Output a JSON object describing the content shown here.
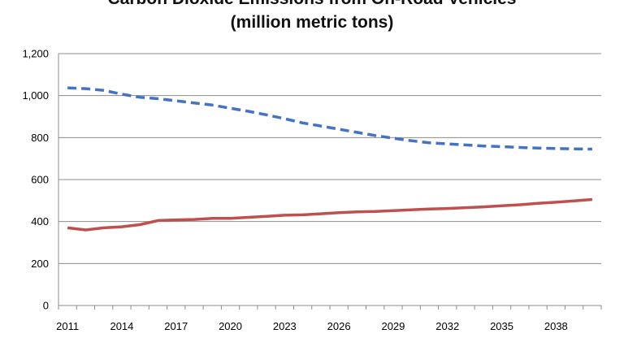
{
  "chart_data": {
    "type": "line",
    "title_lines": [
      "Carbon Dioxide Emissions from On-Road Vehicles",
      "(million metric tons)"
    ],
    "xlabel": "",
    "ylabel": "",
    "ylim": [
      0,
      1200
    ],
    "y_ticks": [
      0,
      200,
      400,
      600,
      800,
      1000,
      1200
    ],
    "y_tick_labels": [
      "0",
      "200",
      "400",
      "600",
      "800",
      "1,000",
      "1,200"
    ],
    "x_tick_labels": [
      "2011",
      "2014",
      "2017",
      "2020",
      "2023",
      "2026",
      "2029",
      "2032",
      "2035",
      "2038"
    ],
    "x": [
      2011,
      2012,
      2013,
      2014,
      2015,
      2016,
      2017,
      2018,
      2019,
      2020,
      2021,
      2022,
      2023,
      2024,
      2025,
      2026,
      2027,
      2028,
      2029,
      2030,
      2031,
      2032,
      2033,
      2034,
      2035,
      2036,
      2037,
      2038,
      2039,
      2040
    ],
    "grid": true,
    "legend": "none",
    "series": [
      {
        "style": "dashed",
        "color": "#4472C4",
        "values": [
          1037,
          1033,
          1025,
          1007,
          992,
          985,
          975,
          965,
          955,
          940,
          925,
          908,
          890,
          870,
          855,
          840,
          825,
          810,
          797,
          785,
          775,
          770,
          765,
          760,
          757,
          753,
          750,
          748,
          746,
          745
        ]
      },
      {
        "style": "solid",
        "color": "#C0504D",
        "values": [
          370,
          360,
          370,
          375,
          385,
          405,
          408,
          410,
          415,
          415,
          420,
          425,
          430,
          432,
          437,
          442,
          446,
          448,
          452,
          456,
          460,
          462,
          466,
          470,
          475,
          480,
          487,
          492,
          498,
          505
        ]
      }
    ]
  }
}
